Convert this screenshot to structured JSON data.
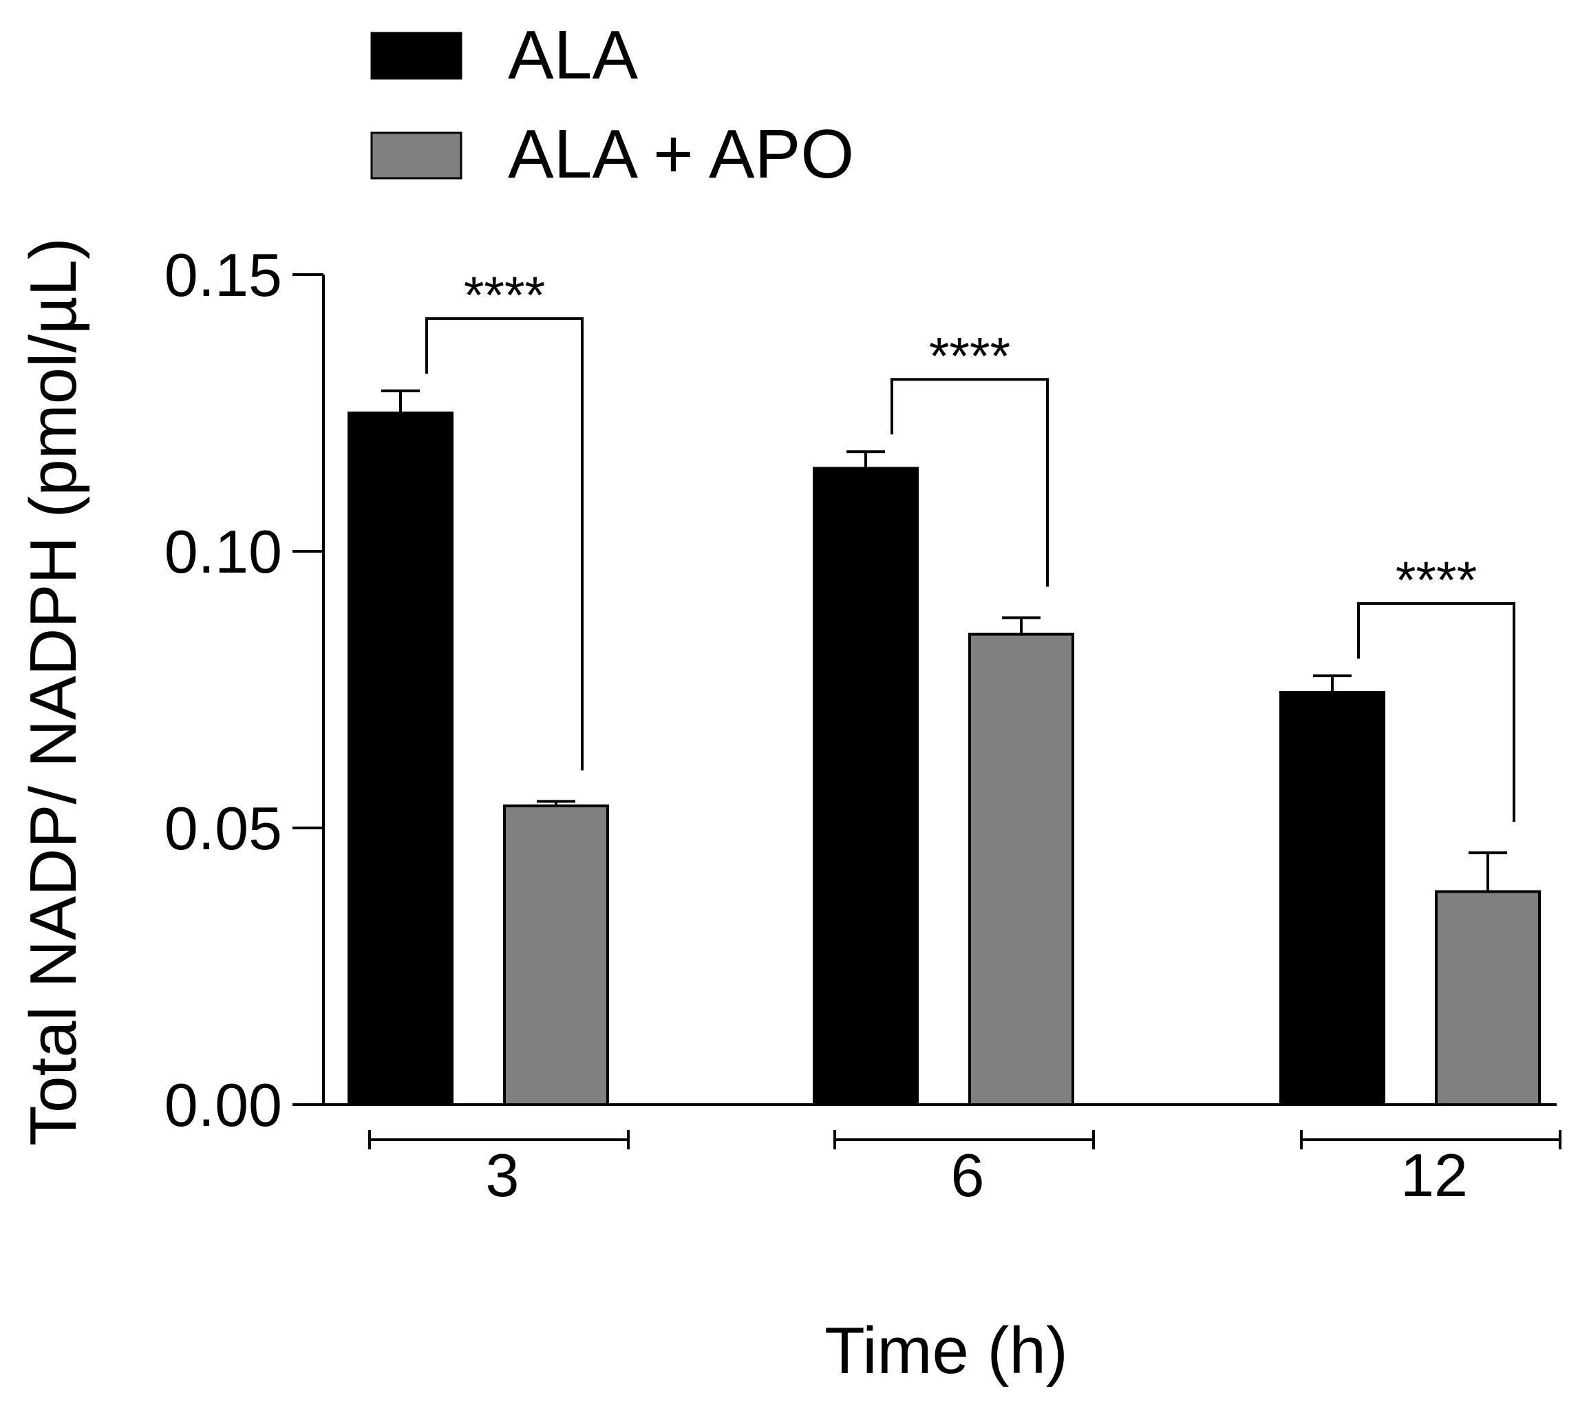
{
  "chart_data": {
    "type": "bar",
    "title": "",
    "xlabel": "Time (h)",
    "ylabel": "Total NADP/ NADPH (pmol/µL)",
    "ylim": [
      0,
      0.15
    ],
    "yticks": [
      "0.00",
      "0.05",
      "0.10",
      "0.15"
    ],
    "categories": [
      "3",
      "6",
      "12"
    ],
    "series": [
      {
        "name": "ALA",
        "color": "#000000",
        "values": [
          0.125,
          0.115,
          0.0745
        ],
        "errors": [
          0.004,
          0.003,
          0.003
        ]
      },
      {
        "name": "ALA + APO",
        "color": "#808080",
        "values": [
          0.054,
          0.085,
          0.0385
        ],
        "errors": [
          0.0008,
          0.003,
          0.007
        ]
      }
    ],
    "significance": [
      {
        "category": "3",
        "label": "****"
      },
      {
        "category": "6",
        "label": "****"
      },
      {
        "category": "12",
        "label": "****"
      }
    ],
    "legend": {
      "position": "top-left",
      "entries": [
        "ALA",
        "ALA + APO"
      ]
    },
    "grid": false
  }
}
